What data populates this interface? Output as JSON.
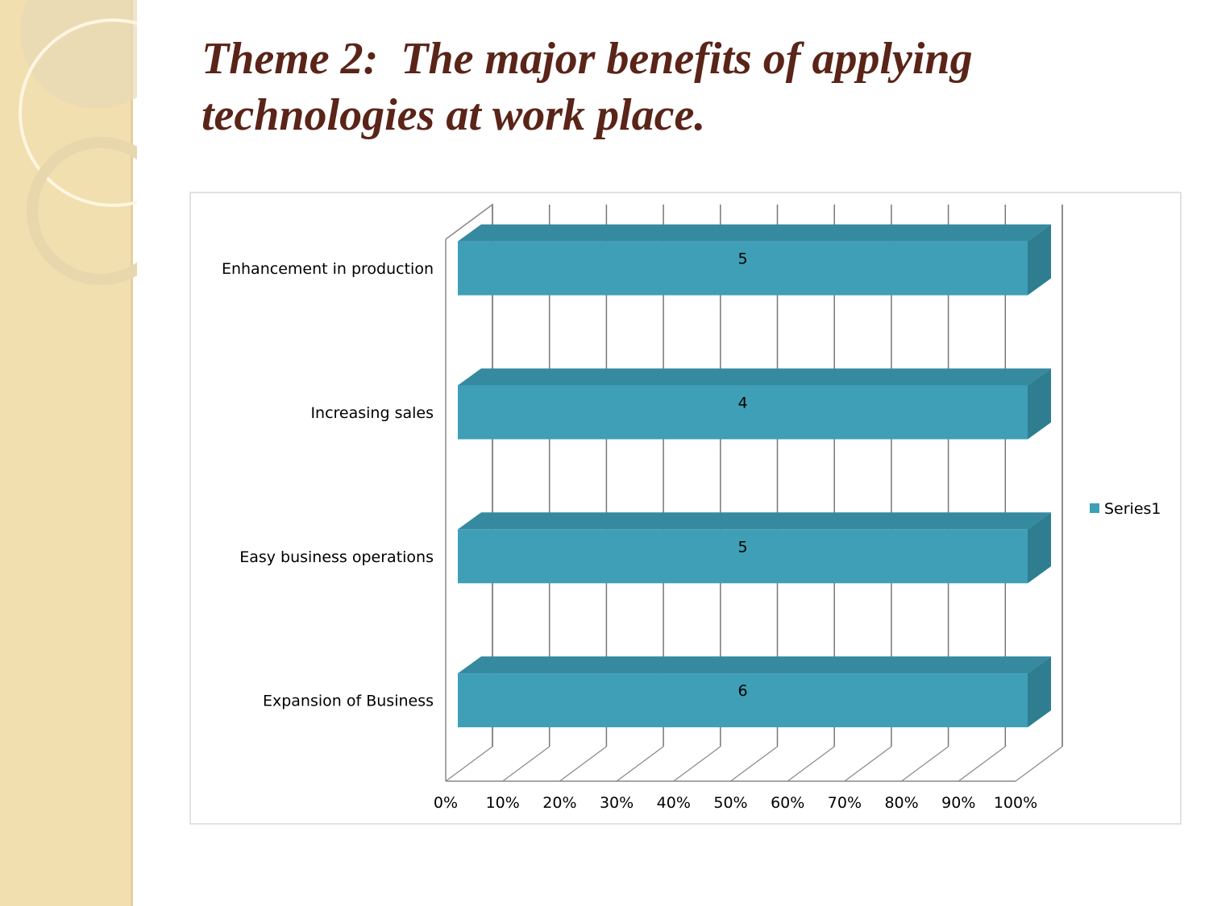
{
  "chart_data": {
    "type": "bar",
    "orientation": "horizontal",
    "stacking": "percent",
    "title": "Theme 2:  The major benefits of applying technologies at work place.",
    "categories": [
      "Expansion of Business",
      "Easy business operations",
      "Increasing sales",
      "Enhancement in production"
    ],
    "series": [
      {
        "name": "Series1",
        "color": "#3e9fb7",
        "values": [
          6,
          5,
          4,
          5
        ]
      }
    ],
    "xlim": [
      0,
      100
    ],
    "xticks": [
      {
        "value": 0,
        "label": "0%"
      },
      {
        "value": 10,
        "label": "10%"
      },
      {
        "value": 20,
        "label": "20%"
      },
      {
        "value": 30,
        "label": "30%"
      },
      {
        "value": 40,
        "label": "40%"
      },
      {
        "value": 50,
        "label": "50%"
      },
      {
        "value": 60,
        "label": "60%"
      },
      {
        "value": 70,
        "label": "70%"
      },
      {
        "value": 80,
        "label": "80%"
      },
      {
        "value": 90,
        "label": "90%"
      },
      {
        "value": 100,
        "label": "100%"
      }
    ],
    "grid": true,
    "legend": "right",
    "data_labels": true
  }
}
